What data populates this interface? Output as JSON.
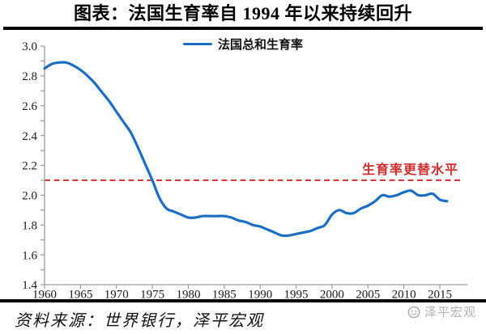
{
  "header": {
    "title": "图表：法国生育率自 1994 年以来持续回升"
  },
  "colors": {
    "line_blue": "#1C6EC2",
    "replacement_red": "#CE2F2F",
    "axis_gray": "#9C9C9C",
    "rule_black": "#000000",
    "watermark_gray": "#B2B2B2",
    "tick_text": "#1A1A1A"
  },
  "chart_data": {
    "type": "line",
    "title": "图表：法国生育率自 1994 年以来持续回升",
    "legend_position": "top-center",
    "legend": [
      {
        "label": "法国总和生育率",
        "color": "#1C6EC2"
      }
    ],
    "grid": false,
    "ylim": [
      1.4,
      3.0
    ],
    "xlim": [
      1960,
      2018
    ],
    "xticks": [
      1960,
      1965,
      1970,
      1975,
      1980,
      1985,
      1990,
      1995,
      2000,
      2005,
      2010,
      2015
    ],
    "ytick_values": [
      1.4,
      1.6,
      1.8,
      2.0,
      2.2,
      2.4,
      2.6,
      2.8,
      3.0
    ],
    "ytick_labels": [
      "1.4",
      "1.6",
      "1.8",
      "2.0",
      "2.2",
      "2.4",
      "2.6",
      "2.8",
      "3.0"
    ],
    "yminor_step": 0.1,
    "x": [
      1960,
      1961,
      1962,
      1963,
      1964,
      1965,
      1966,
      1967,
      1968,
      1969,
      1970,
      1971,
      1972,
      1973,
      1974,
      1975,
      1976,
      1977,
      1978,
      1979,
      1980,
      1981,
      1982,
      1983,
      1984,
      1985,
      1986,
      1987,
      1988,
      1989,
      1990,
      1991,
      1992,
      1993,
      1994,
      1995,
      1996,
      1997,
      1998,
      1999,
      2000,
      2001,
      2002,
      2003,
      2004,
      2005,
      2006,
      2007,
      2008,
      2009,
      2010,
      2011,
      2012,
      2013,
      2014,
      2015,
      2016
    ],
    "series": [
      {
        "name": "法国总和生育率",
        "color": "#1C6EC2",
        "values": [
          2.85,
          2.88,
          2.89,
          2.89,
          2.87,
          2.84,
          2.8,
          2.75,
          2.69,
          2.63,
          2.56,
          2.49,
          2.42,
          2.32,
          2.21,
          2.1,
          1.98,
          1.91,
          1.89,
          1.87,
          1.85,
          1.85,
          1.86,
          1.86,
          1.86,
          1.86,
          1.85,
          1.83,
          1.82,
          1.8,
          1.79,
          1.77,
          1.75,
          1.73,
          1.73,
          1.74,
          1.75,
          1.76,
          1.78,
          1.8,
          1.87,
          1.9,
          1.88,
          1.88,
          1.91,
          1.93,
          1.96,
          2.0,
          1.99,
          2.0,
          2.02,
          2.03,
          2.0,
          2.0,
          2.01,
          1.97,
          1.96
        ]
      }
    ],
    "reference_line": {
      "value": 2.1,
      "label": "生育率更替水平",
      "style": "dashed",
      "color": "#CE2F2F"
    }
  },
  "footer": {
    "source": "资料来源：世界银行，泽平宏观",
    "watermark": "泽平宏观"
  }
}
